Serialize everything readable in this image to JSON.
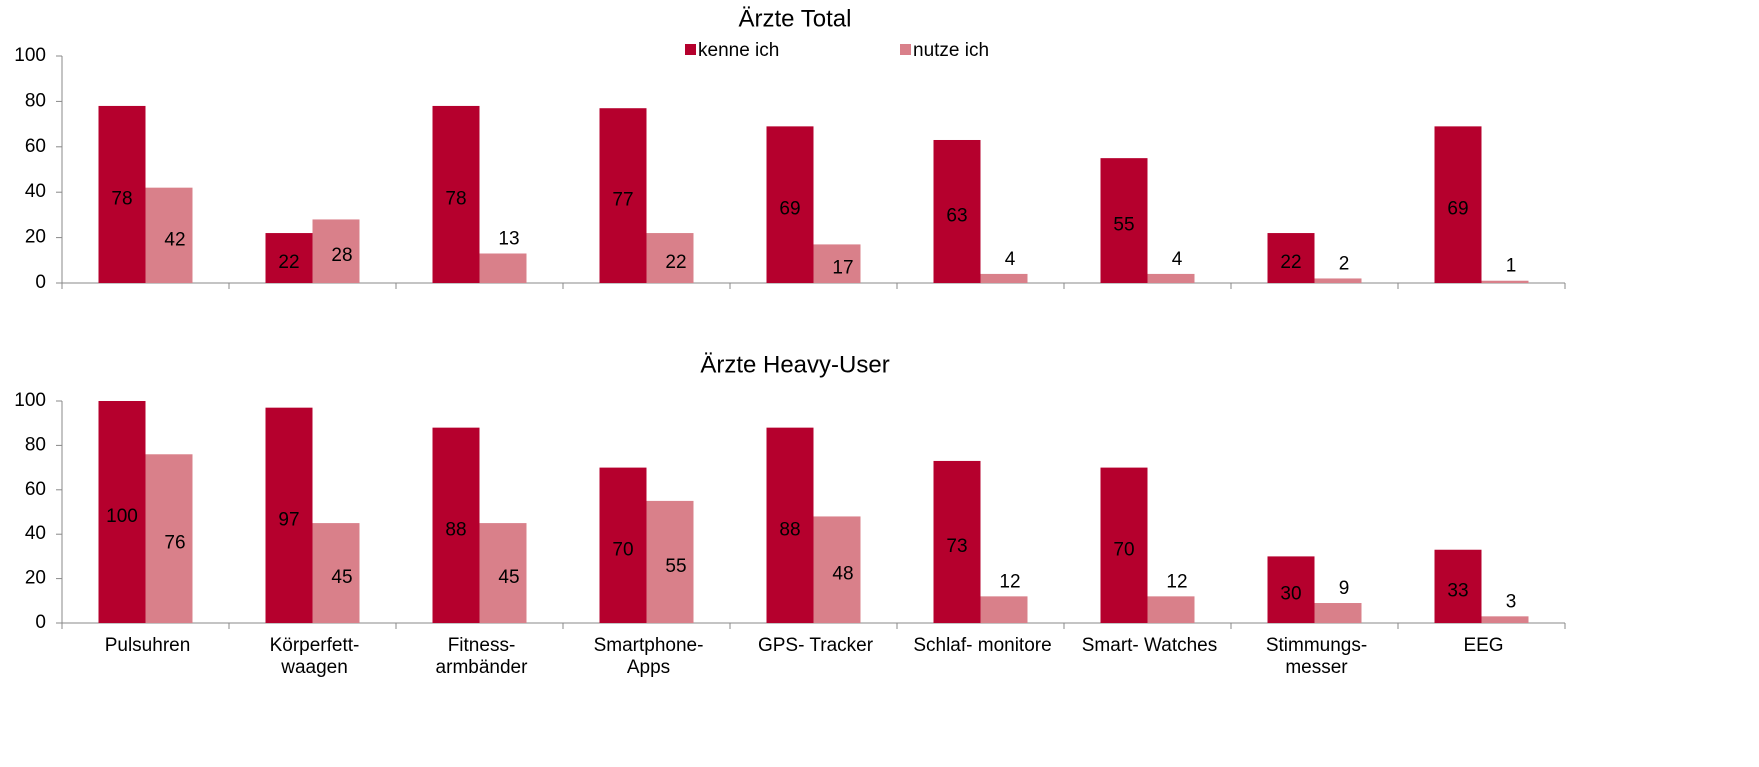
{
  "chart_data": [
    {
      "type": "bar",
      "title": "Ärzte Total",
      "legend": "top",
      "categories": [
        null,
        null,
        null,
        null,
        null,
        null,
        null,
        null,
        null
      ],
      "series": [
        {
          "name": "kenne ich",
          "color": "#b5002d",
          "values": [
            78,
            22,
            78,
            77,
            69,
            63,
            55,
            22,
            69
          ]
        },
        {
          "name": "nutze ich",
          "color": "#d9808a",
          "values": [
            42,
            28,
            13,
            22,
            17,
            4,
            4,
            2,
            1
          ]
        }
      ],
      "ylim": [
        0,
        100
      ],
      "yticks": [
        0,
        20,
        40,
        60,
        80,
        100
      ]
    },
    {
      "type": "bar",
      "title": "Ärzte Heavy-User",
      "categories": [
        "Pulsuhren",
        "Körperfett-\nwaagen",
        "Fitness-\narmbänder",
        "Smartphone-\nApps",
        "GPS- Tracker",
        "Schlaf- monitore",
        "Smart- Watches",
        "Stimmungs-\nmesser",
        "EEG"
      ],
      "series": [
        {
          "color": "#b5002d",
          "values": [
            100,
            97,
            88,
            70,
            88,
            73,
            70,
            30,
            33
          ]
        },
        {
          "color": "#d9808a",
          "values": [
            76,
            45,
            45,
            55,
            48,
            12,
            12,
            9,
            3
          ]
        }
      ],
      "ylim": [
        0,
        100
      ],
      "yticks": [
        0,
        20,
        40,
        60,
        80,
        100
      ]
    }
  ]
}
